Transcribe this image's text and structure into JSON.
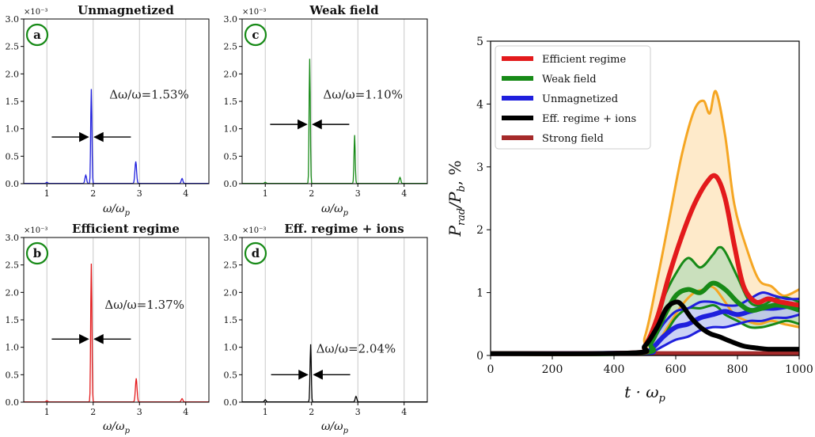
{
  "colors": {
    "red": "#e31a1c",
    "green": "#178a17",
    "blue": "#1f1fdd",
    "black": "#000000",
    "brown": "#a52a2a",
    "orange": "#f5a623",
    "orange_fill": "#fde3b8",
    "green_fill": "#b8dcb8",
    "blue_fill": "#b9c3f2",
    "grid": "#c8c8c8"
  },
  "spectra": [
    {
      "letter": "a",
      "title": "Unmagnetized",
      "color_key": "blue",
      "annotation": "Δω/ω=1.53%",
      "multiplier": "×10⁻³",
      "xlabel": "ω/ω_p",
      "peaks": [
        [
          1.0,
          0.02
        ],
        [
          1.84,
          0.15
        ],
        [
          1.96,
          1.72
        ],
        [
          2.92,
          0.4
        ],
        [
          3.92,
          0.09
        ]
      ]
    },
    {
      "letter": "c",
      "title": "Weak field",
      "color_key": "green",
      "annotation": "Δω/ω=1.10%",
      "multiplier": "×10⁻³",
      "xlabel": "ω/ω_p",
      "peaks": [
        [
          1.0,
          0.02
        ],
        [
          1.96,
          2.27
        ],
        [
          2.93,
          0.88
        ],
        [
          3.91,
          0.11
        ]
      ]
    },
    {
      "letter": "b",
      "title": "Efficient regime",
      "color_key": "red",
      "annotation": "Δω/ω=1.37%",
      "multiplier": "×10⁻³",
      "xlabel": "ω/ω_p",
      "peaks": [
        [
          1.0,
          0.02
        ],
        [
          1.96,
          2.52
        ],
        [
          2.93,
          0.43
        ],
        [
          3.92,
          0.06
        ]
      ]
    },
    {
      "letter": "d",
      "title": "Eff. regime + ions",
      "color_key": "black",
      "annotation": "Δω/ω=2.04%",
      "multiplier": "×10⁻³",
      "xlabel": "ω/ω_p",
      "peaks": [
        [
          1.0,
          0.04
        ],
        [
          1.98,
          1.05
        ],
        [
          2.96,
          0.1
        ]
      ]
    }
  ],
  "chart_data": [
    {
      "type": "line",
      "title": "Unmagnetized",
      "xlabel": "ω/ω_p",
      "ylabel": "",
      "xlim": [
        0.5,
        4.5
      ],
      "ylim": [
        0,
        3.0
      ],
      "y_multiplier": "×10⁻³",
      "xticks": [
        "1",
        "2",
        "3",
        "4"
      ],
      "yticks": [
        "0.0",
        "0.5",
        "1.0",
        "1.5",
        "2.0",
        "2.5",
        "3.0"
      ],
      "series": [
        {
          "peaks_x": [
            1.84,
            1.96,
            2.92,
            3.92
          ],
          "peaks_y": [
            0.15,
            1.72,
            0.4,
            0.09
          ]
        }
      ]
    },
    {
      "type": "line",
      "title": "Weak field",
      "xlabel": "ω/ω_p",
      "ylabel": "",
      "xlim": [
        0.5,
        4.5
      ],
      "ylim": [
        0,
        3.0
      ],
      "y_multiplier": "×10⁻³",
      "xticks": [
        "1",
        "2",
        "3",
        "4"
      ],
      "yticks": [
        "0.0",
        "0.5",
        "1.0",
        "1.5",
        "2.0",
        "2.5",
        "3.0"
      ],
      "series": [
        {
          "peaks_x": [
            1.96,
            2.93,
            3.91
          ],
          "peaks_y": [
            2.27,
            0.88,
            0.11
          ]
        }
      ]
    },
    {
      "type": "line",
      "title": "Efficient regime",
      "xlabel": "ω/ω_p",
      "ylabel": "",
      "xlim": [
        0.5,
        4.5
      ],
      "ylim": [
        0,
        3.0
      ],
      "y_multiplier": "×10⁻³",
      "xticks": [
        "1",
        "2",
        "3",
        "4"
      ],
      "yticks": [
        "0.0",
        "0.5",
        "1.0",
        "1.5",
        "2.0",
        "2.5",
        "3.0"
      ],
      "series": [
        {
          "peaks_x": [
            1.96,
            2.93,
            3.92
          ],
          "peaks_y": [
            2.52,
            0.43,
            0.06
          ]
        }
      ]
    },
    {
      "type": "line",
      "title": "Eff. regime + ions",
      "xlabel": "ω/ω_p",
      "ylabel": "",
      "xlim": [
        0.5,
        4.5
      ],
      "ylim": [
        0,
        3.0
      ],
      "y_multiplier": "×10⁻³",
      "xticks": [
        "1",
        "2",
        "3",
        "4"
      ],
      "yticks": [
        "0.0",
        "0.5",
        "1.0",
        "1.5",
        "2.0",
        "2.5",
        "3.0"
      ],
      "series": [
        {
          "peaks_x": [
            1.0,
            1.98,
            2.96
          ],
          "peaks_y": [
            0.04,
            1.05,
            0.1
          ]
        }
      ]
    },
    {
      "type": "line",
      "title": "",
      "xlabel": "t · ω_p",
      "ylabel": "P_rad/P_b, %",
      "xlim": [
        0,
        1000
      ],
      "ylim": [
        0,
        5
      ],
      "legend": "top-left",
      "xticks": [
        "0",
        "200",
        "400",
        "600",
        "800",
        "1000"
      ],
      "yticks": [
        "0",
        "1",
        "2",
        "3",
        "4",
        "5"
      ],
      "series": [
        {
          "name": "Efficient regime",
          "color_key": "red",
          "x": [
            0,
            460,
            500,
            540,
            580,
            620,
            660,
            700,
            730,
            760,
            790,
            820,
            860,
            900,
            940,
            1000
          ],
          "y": [
            0.03,
            0.04,
            0.15,
            0.6,
            1.3,
            1.9,
            2.4,
            2.75,
            2.85,
            2.5,
            1.75,
            1.1,
            0.85,
            0.9,
            0.85,
            0.8
          ]
        },
        {
          "name": "Weak field",
          "color_key": "green",
          "x": [
            0,
            480,
            520,
            560,
            600,
            640,
            680,
            720,
            760,
            800,
            840,
            880,
            920,
            960,
            1000
          ],
          "y": [
            0.03,
            0.04,
            0.2,
            0.6,
            0.95,
            1.05,
            1.0,
            1.15,
            1.05,
            0.85,
            0.72,
            0.75,
            0.8,
            0.78,
            0.72
          ]
        },
        {
          "name": "Unmagnetized",
          "color_key": "blue",
          "x": [
            0,
            480,
            520,
            560,
            600,
            640,
            680,
            720,
            760,
            800,
            840,
            880,
            920,
            960,
            1000
          ],
          "y": [
            0.03,
            0.04,
            0.1,
            0.3,
            0.45,
            0.5,
            0.6,
            0.65,
            0.7,
            0.65,
            0.7,
            0.75,
            0.75,
            0.78,
            0.8
          ]
        },
        {
          "name": "Eff. regime + ions",
          "color_key": "black",
          "x": [
            0,
            460,
            500,
            540,
            570,
            600,
            620,
            650,
            680,
            710,
            740,
            780,
            820,
            860,
            900,
            950,
            1000
          ],
          "y": [
            0.03,
            0.04,
            0.15,
            0.45,
            0.75,
            0.85,
            0.8,
            0.6,
            0.45,
            0.35,
            0.3,
            0.22,
            0.15,
            0.12,
            0.1,
            0.1,
            0.1
          ]
        },
        {
          "name": "Strong field",
          "color_key": "brown",
          "x": [
            0,
            1000
          ],
          "y": [
            0.03,
            0.03
          ]
        }
      ],
      "bands": [
        {
          "series": "Efficient regime",
          "color_key": "orange",
          "x": [
            0,
            460,
            500,
            540,
            580,
            620,
            660,
            690,
            710,
            730,
            760,
            790,
            830,
            870,
            910,
            950,
            1000
          ],
          "upper": [
            0.04,
            0.05,
            0.3,
            1.2,
            2.2,
            3.2,
            3.9,
            4.05,
            3.85,
            4.2,
            3.5,
            2.4,
            1.7,
            1.2,
            1.1,
            0.95,
            1.05
          ],
          "lower": [
            0.02,
            0.03,
            0.05,
            0.2,
            0.5,
            0.8,
            1.0,
            1.05,
            1.1,
            1.05,
            0.85,
            0.65,
            0.55,
            0.5,
            0.55,
            0.5,
            0.45
          ]
        },
        {
          "series": "Weak field",
          "color_key": "green",
          "x": [
            0,
            480,
            520,
            560,
            600,
            640,
            680,
            720,
            740,
            760,
            800,
            840,
            880,
            920,
            960,
            1000
          ],
          "upper": [
            0.04,
            0.05,
            0.3,
            0.9,
            1.3,
            1.55,
            1.4,
            1.6,
            1.72,
            1.65,
            1.25,
            0.85,
            0.8,
            0.9,
            0.92,
            0.85
          ],
          "lower": [
            0.02,
            0.03,
            0.1,
            0.3,
            0.6,
            0.75,
            0.75,
            0.8,
            0.75,
            0.65,
            0.55,
            0.45,
            0.45,
            0.5,
            0.55,
            0.5
          ]
        },
        {
          "series": "Unmagnetized",
          "color_key": "blue",
          "x": [
            0,
            480,
            520,
            560,
            600,
            640,
            680,
            720,
            760,
            800,
            840,
            880,
            920,
            960,
            1000
          ],
          "upper": [
            0.04,
            0.05,
            0.2,
            0.5,
            0.7,
            0.75,
            0.85,
            0.85,
            0.8,
            0.8,
            0.9,
            1.0,
            0.95,
            0.9,
            0.9
          ],
          "lower": [
            0.02,
            0.03,
            0.05,
            0.15,
            0.25,
            0.3,
            0.4,
            0.45,
            0.45,
            0.5,
            0.55,
            0.55,
            0.6,
            0.6,
            0.65
          ]
        }
      ]
    }
  ],
  "main_plot": {
    "xlabel": "t · ω",
    "xlabel_sub": "p",
    "ylabel_a": "P",
    "ylabel_a_sub": "rad",
    "ylabel_b": "/P",
    "ylabel_b_sub": "b",
    "ylabel_c": ", %"
  }
}
